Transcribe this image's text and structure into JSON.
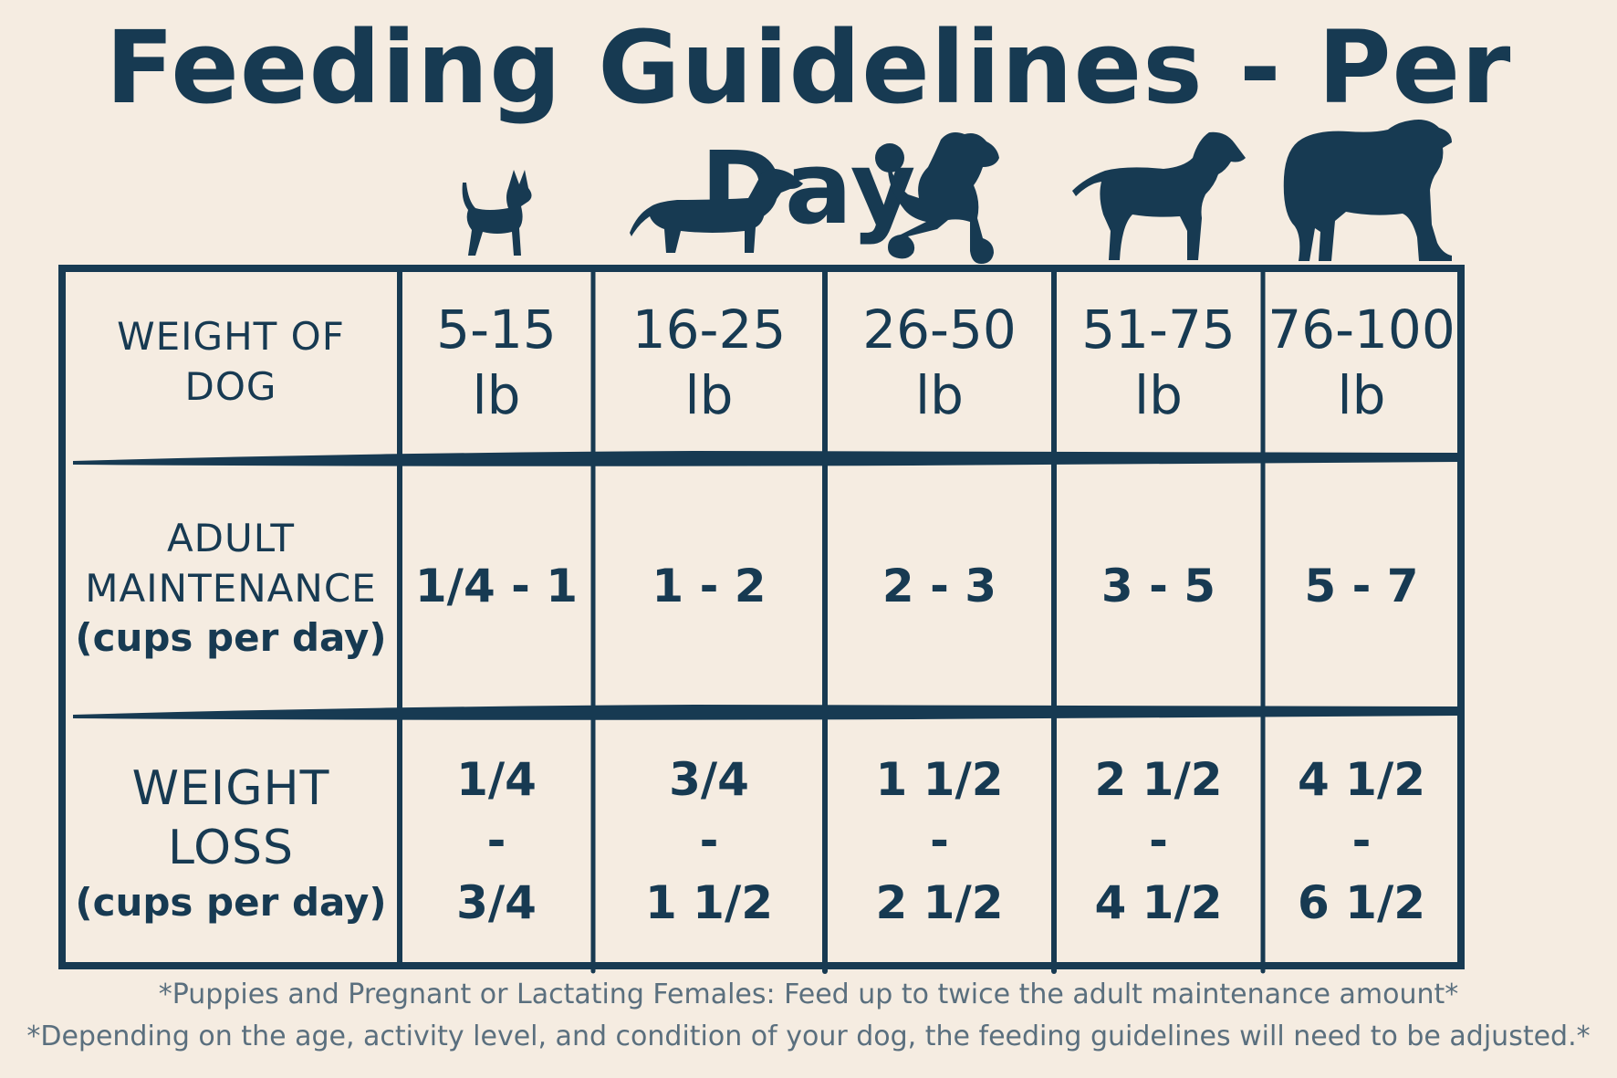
{
  "title": "Feeding Guidelines - Per Day",
  "dog_icons": [
    "chihuahua-icon",
    "dachshund-icon",
    "poodle-icon",
    "retriever-icon",
    "mastiff-icon"
  ],
  "colors": {
    "background": "#f5ece1",
    "ink": "#173a52",
    "footnote": "#5a6f7e"
  },
  "table": {
    "weight_label": {
      "line1": "WEIGHT OF",
      "line2": "DOG"
    },
    "weights": [
      {
        "range": "5-15",
        "unit": "lb"
      },
      {
        "range": "16-25",
        "unit": "lb"
      },
      {
        "range": "26-50",
        "unit": "lb"
      },
      {
        "range": "51-75",
        "unit": "lb"
      },
      {
        "range": "76-100",
        "unit": "lb"
      }
    ],
    "adult_label": {
      "line1": "ADULT",
      "line2": "MAINTENANCE",
      "line3": "(cups per day)"
    },
    "adult_values": [
      "1/4 - 1",
      "1 - 2",
      "2 - 3",
      "3 - 5",
      "5 - 7"
    ],
    "loss_label": {
      "line1": "WEIGHT",
      "line2": "LOSS",
      "line3": "(cups per day)"
    },
    "loss_values": [
      {
        "min": "1/4",
        "sep": "-",
        "max": "3/4"
      },
      {
        "min": "3/4",
        "sep": "-",
        "max": "1 1/2"
      },
      {
        "min": "1 1/2",
        "sep": "-",
        "max": "2 1/2"
      },
      {
        "min": "2 1/2",
        "sep": "-",
        "max": "4 1/2"
      },
      {
        "min": "4 1/2",
        "sep": "-",
        "max": "6 1/2"
      }
    ]
  },
  "footnotes": [
    "*Puppies and Pregnant or Lactating Females: Feed up to twice the adult maintenance amount*",
    "*Depending on the age, activity level, and condition of your dog, the feeding guidelines will need to be adjusted.*"
  ]
}
